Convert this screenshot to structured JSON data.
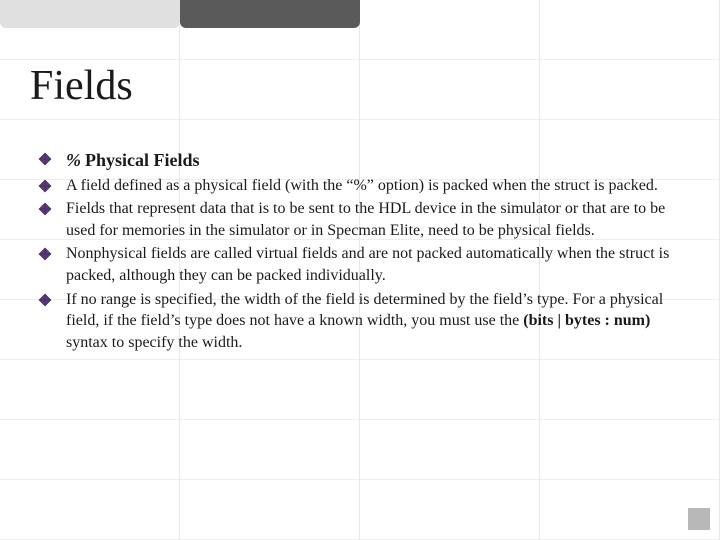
{
  "title": "Fields",
  "bullets": [
    {
      "text_html": "<span class='italic-text bold-text sub-title'>%</span> <span class='bold-text sub-title'>Physical Fields</span>"
    },
    {
      "text_html": "A field defined as a physical field (with the “%” option) is packed when the struct is packed."
    },
    {
      "text_html": "Fields that represent data that is to be sent to the HDL device in the simulator or that are to be used for memories in the simulator or in Specman Elite, need to be physical fields."
    },
    {
      "text_html": "Nonphysical fields are called virtual fields and are not packed automatically when the struct is packed, although they can be packed individually."
    },
    {
      "text_html": "If no range is specified, the width of the field is determined by the field’s type. For a physical field, if the field’s type does not have a known width, you must use the <span class='bold-text'>(bits | bytes : num)</span> syntax to specify the width."
    }
  ],
  "colors": {
    "bullet_fill": "#5b3a78",
    "bullet_stroke": "#3a2450",
    "background": "#ffffff",
    "text": "#1a1a1a"
  }
}
